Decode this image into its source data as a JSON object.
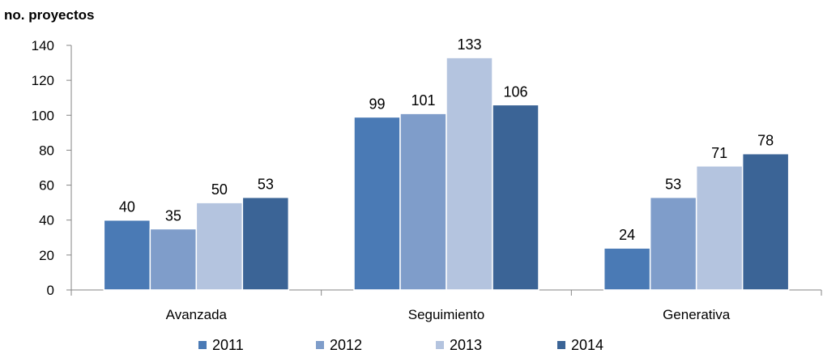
{
  "chart_data": {
    "type": "bar",
    "title": "",
    "xlabel": "",
    "ylabel": "no. proyectos",
    "categories": [
      "Avanzada",
      "Seguimiento",
      "Generativa"
    ],
    "series": [
      {
        "name": "2011",
        "values": [
          40,
          99,
          24
        ],
        "color": "#4a7ab5"
      },
      {
        "name": "2012",
        "values": [
          35,
          101,
          53
        ],
        "color": "#7f9dca"
      },
      {
        "name": "2013",
        "values": [
          50,
          133,
          71
        ],
        "color": "#b4c4df"
      },
      {
        "name": "2014",
        "values": [
          53,
          106,
          78
        ],
        "color": "#3b6496"
      }
    ],
    "ylim": [
      0,
      140
    ],
    "yticks": [
      "0",
      "20",
      "40",
      "60",
      "80",
      "100",
      "120",
      "140"
    ],
    "grid": false,
    "legend_position": "bottom",
    "data_labels": true
  }
}
